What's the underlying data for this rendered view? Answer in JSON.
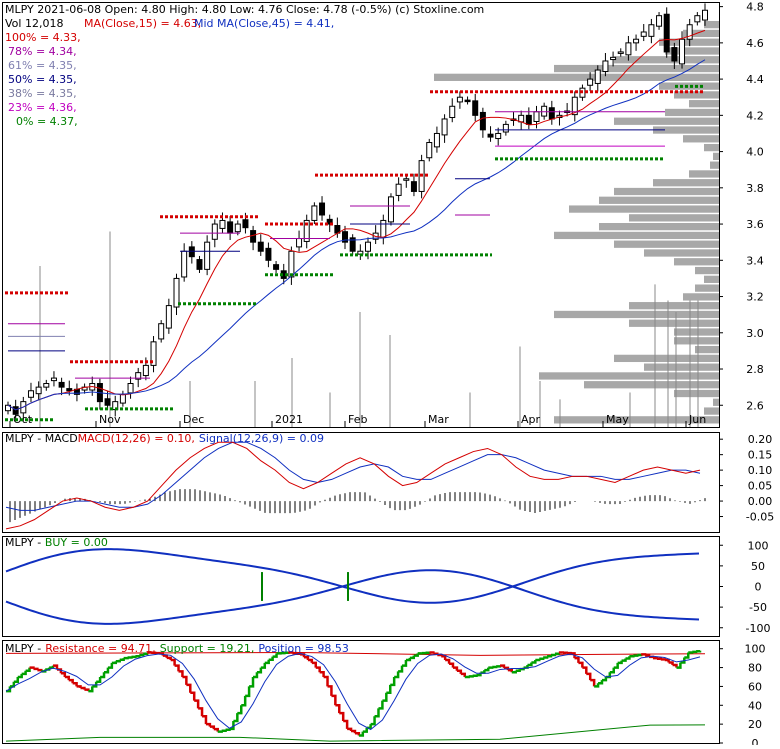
{
  "header": {
    "line1": "MLPY  2021-06-08 Open: 4.80  High: 4.80  Low: 4.76  Close: 4.78 (-0.5%)  (c) Stoxline.com",
    "vol": "Vol 12,018",
    "ma15": "MA(Close,15) = 4.63,",
    "ma45": "Mid MA(Close,45) = 4.41,"
  },
  "fib_levels": [
    {
      "label": "100% = 4.33,",
      "color": "#d40000"
    },
    {
      "label": "78% = 4.34,",
      "color": "#a000a0"
    },
    {
      "label": "61% = 4.35,",
      "color": "#8080b0"
    },
    {
      "label": "50% = 4.35,",
      "color": "#000080"
    },
    {
      "label": "38% = 4.35,",
      "color": "#7a7aa0"
    },
    {
      "label": "23% = 4.36,",
      "color": "#c000c0"
    },
    {
      "label": "0% = 4.37,",
      "color": "#008000"
    }
  ],
  "colors": {
    "ma15": "#d40000",
    "ma45": "#1030c0",
    "resistance": "#d40000",
    "support": "#008000",
    "macd": "#d40000",
    "signal": "#1030c0",
    "buy": "#008000",
    "volume_profile": "#a8a8a8"
  },
  "chart_data": [
    {
      "type": "candlestick",
      "x_labels": [
        "Oct",
        "Nov",
        "Dec",
        "2021",
        "Feb",
        "Mar",
        "Apr",
        "May",
        "Jun"
      ],
      "y_ticks": [
        2.6,
        2.8,
        3.0,
        3.2,
        3.4,
        3.6,
        3.8,
        4.0,
        4.2,
        4.4,
        4.6,
        4.8
      ],
      "ylim": [
        2.48,
        4.82
      ],
      "close": [
        2.6,
        2.55,
        2.62,
        2.68,
        2.7,
        2.72,
        2.75,
        2.7,
        2.68,
        2.66,
        2.7,
        2.72,
        2.62,
        2.6,
        2.62,
        2.66,
        2.72,
        2.78,
        2.82,
        2.95,
        3.05,
        3.15,
        3.3,
        3.45,
        3.42,
        3.35,
        3.5,
        3.6,
        3.62,
        3.55,
        3.6,
        3.58,
        3.5,
        3.45,
        3.4,
        3.35,
        3.3,
        3.45,
        3.52,
        3.62,
        3.7,
        3.65,
        3.6,
        3.55,
        3.5,
        3.45,
        3.45,
        3.5,
        3.55,
        3.62,
        3.75,
        3.82,
        3.85,
        3.78,
        3.95,
        4.05,
        4.1,
        4.18,
        4.25,
        4.3,
        4.28,
        4.2,
        4.12,
        4.08,
        4.1,
        4.15,
        4.18,
        4.2,
        4.15,
        4.22,
        4.25,
        4.18,
        4.2,
        4.22,
        4.3,
        4.35,
        4.4,
        4.45,
        4.5,
        4.52,
        4.55,
        4.6,
        4.62,
        4.66,
        4.7,
        4.75,
        4.55,
        4.5,
        4.62,
        4.7,
        4.75,
        4.78
      ],
      "volume_spikes": [
        [
          40,
          0.7
        ],
        [
          110,
          0.85
        ],
        [
          190,
          0.2
        ],
        [
          255,
          0.2
        ],
        [
          292,
          0.3
        ],
        [
          330,
          0.15
        ],
        [
          360,
          0.5
        ],
        [
          390,
          0.4
        ],
        [
          470,
          0.15
        ],
        [
          520,
          0.35
        ],
        [
          540,
          0.2
        ],
        [
          560,
          0.12
        ],
        [
          630,
          0.15
        ],
        [
          655,
          0.62
        ],
        [
          668,
          0.55
        ],
        [
          676,
          0.5
        ],
        [
          690,
          0.55
        ],
        [
          698,
          0.55
        ]
      ],
      "volume_profile": [
        0.05,
        0.12,
        0.2,
        0.18,
        0.35,
        0.55,
        0.95,
        0.2,
        0.15,
        0.1,
        0.18,
        0.35,
        0.22,
        0.12,
        0.05,
        0.02,
        0.03,
        0.1,
        0.22,
        0.35,
        0.4,
        0.5,
        0.3,
        0.4,
        0.55,
        0.35,
        0.25,
        0.15,
        0.08,
        0.05,
        0.08,
        0.12,
        0.3,
        0.55,
        0.3,
        0.15,
        0.15,
        0.08,
        0.35,
        0.25,
        0.6,
        0.45,
        0.15,
        0.02,
        0.05,
        0.55
      ]
    },
    {
      "type": "line",
      "name_label": "MLPY - MACD",
      "header": "MACD(12,26) = 0.10,",
      "signal_header": "Signal(12,26,9) = 0.09",
      "y_ticks": [
        0.2,
        0.15,
        0.1,
        0.05,
        0.0,
        -0.05
      ],
      "ylim": [
        -0.1,
        0.22
      ],
      "macd": [
        -0.09,
        -0.08,
        -0.06,
        -0.03,
        0.0,
        0.01,
        0.0,
        -0.02,
        -0.03,
        -0.02,
        0.0,
        0.05,
        0.1,
        0.14,
        0.17,
        0.19,
        0.19,
        0.17,
        0.13,
        0.1,
        0.06,
        0.04,
        0.06,
        0.09,
        0.12,
        0.14,
        0.12,
        0.08,
        0.05,
        0.06,
        0.09,
        0.12,
        0.14,
        0.16,
        0.17,
        0.15,
        0.11,
        0.08,
        0.07,
        0.07,
        0.08,
        0.08,
        0.07,
        0.06,
        0.08,
        0.1,
        0.11,
        0.1,
        0.09,
        0.1
      ],
      "signal": [
        -0.02,
        -0.03,
        -0.03,
        -0.02,
        -0.01,
        0.0,
        0.0,
        -0.01,
        -0.02,
        -0.02,
        -0.01,
        0.02,
        0.06,
        0.1,
        0.14,
        0.17,
        0.19,
        0.19,
        0.17,
        0.14,
        0.1,
        0.07,
        0.06,
        0.07,
        0.09,
        0.11,
        0.12,
        0.11,
        0.08,
        0.07,
        0.07,
        0.09,
        0.11,
        0.13,
        0.15,
        0.15,
        0.14,
        0.12,
        0.1,
        0.09,
        0.08,
        0.08,
        0.08,
        0.07,
        0.07,
        0.08,
        0.09,
        0.1,
        0.1,
        0.09
      ]
    },
    {
      "type": "line",
      "name_label": "MLPY -",
      "header": "BUY = 0.00",
      "y_ticks": [
        100,
        50,
        0,
        -50,
        -100
      ],
      "ylim": [
        -120,
        120
      ]
    },
    {
      "type": "line",
      "name_label": "MLPY -",
      "resistance_header": "Resistance = 94.71,",
      "support_header": "Support = 19.21,",
      "position_header": "Position = 98.53",
      "y_ticks": [
        100,
        80,
        60,
        40,
        20,
        0
      ],
      "ylim": [
        0,
        105
      ],
      "position": [
        55,
        70,
        80,
        76,
        82,
        70,
        60,
        55,
        70,
        85,
        90,
        92,
        96,
        95,
        88,
        70,
        45,
        20,
        12,
        15,
        40,
        70,
        85,
        95,
        96,
        94,
        85,
        70,
        40,
        15,
        8,
        20,
        45,
        70,
        88,
        95,
        96,
        92,
        80,
        70,
        72,
        80,
        82,
        75,
        80,
        88,
        92,
        96,
        95,
        80,
        60,
        70,
        85,
        92,
        94,
        90,
        88,
        80,
        96,
        98
      ]
    }
  ]
}
